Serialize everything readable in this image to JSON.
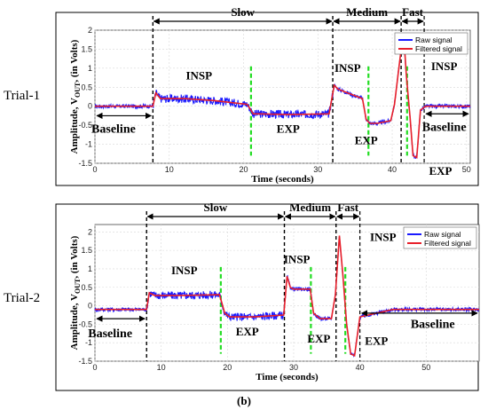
{
  "figure_label": "(b)",
  "chart_data": [
    {
      "type": "line",
      "trial_label": "Trial-1",
      "xlabel": "Time (seconds)",
      "ylabel": "Amplitude, V_OUT, (in Volts)",
      "xlim": [
        0,
        50.5
      ],
      "ylim": [
        -1.5,
        2
      ],
      "xticks": [
        0,
        10,
        20,
        30,
        40,
        50
      ],
      "yticks": [
        -1.5,
        -1,
        -0.5,
        0,
        0.5,
        1,
        1.5,
        2
      ],
      "legend": {
        "position": "top-right",
        "entries": [
          "Raw signal",
          "Filtered signal"
        ]
      },
      "series": [
        {
          "name": "Raw signal",
          "color": "#1a1aff"
        },
        {
          "name": "Filtered signal",
          "color": "#e8202a"
        }
      ],
      "x": [
        0,
        7.8,
        8.2,
        8.8,
        12,
        16,
        20.5,
        21.3,
        22,
        26,
        31.5,
        32.2,
        32.7,
        34,
        36,
        36.5,
        37,
        38,
        39.8,
        40.3,
        41.2,
        41.6,
        41.9,
        42.4,
        42.8,
        43.3,
        43.8,
        44.5,
        47,
        50.5
      ],
      "y": [
        0,
        0,
        0.35,
        0.2,
        0.2,
        0.15,
        0.05,
        -0.2,
        -0.2,
        -0.22,
        -0.2,
        0.55,
        0.45,
        0.35,
        0.2,
        -0.35,
        -0.45,
        -0.45,
        -0.38,
        0.05,
        1.5,
        1.7,
        0.8,
        -0.3,
        -1.3,
        -1.35,
        -0.1,
        0,
        0,
        0
      ],
      "phases": [
        {
          "label": "Slow",
          "x0": 7.8,
          "x1": 32
        },
        {
          "label": "Medium",
          "x0": 32,
          "x1": 41.2
        },
        {
          "label": "Fast",
          "x0": 41.2,
          "x1": 44.3
        }
      ],
      "phase_dividers": [
        7.8,
        32,
        41.2
      ],
      "transition_markers": [
        21,
        36.8,
        42
      ],
      "fast_divider": 44.3,
      "annotations": [
        {
          "text": "INSP",
          "x": 14,
          "y": 0.7
        },
        {
          "text": "EXP",
          "x": 26,
          "y": -0.7
        },
        {
          "text": "INSP",
          "x": 34,
          "y": 0.9
        },
        {
          "text": "EXP",
          "x": 36.5,
          "y": -1.0
        },
        {
          "text": "INSP",
          "x": 47,
          "y": 0.95
        },
        {
          "text": "EXP",
          "x": 46.5,
          "y": -1.8
        },
        {
          "text": "Baseline",
          "x": 2.5,
          "y": -0.7
        },
        {
          "text": "Baseline",
          "x": 47,
          "y": -0.65
        }
      ],
      "baseline_arrows": [
        {
          "x0": 0,
          "x1": 7.8,
          "y": -0.25
        },
        {
          "x0": 44.3,
          "x1": 50.5,
          "y": -0.2
        }
      ]
    },
    {
      "type": "line",
      "trial_label": "Trial-2",
      "xlabel": "Time (seconds)",
      "ylabel": "Amplitude, V_OUT, (in Volts)",
      "xlim": [
        0,
        58
      ],
      "ylim": [
        -1.5,
        2.2
      ],
      "xticks": [
        0,
        10,
        20,
        30,
        40,
        50
      ],
      "yticks": [
        -1.5,
        -1,
        -0.5,
        0,
        0.5,
        1,
        1.5,
        2
      ],
      "legend": {
        "position": "top-right",
        "entries": [
          "Raw signal",
          "Filtered signal"
        ]
      },
      "series": [
        {
          "name": "Raw signal",
          "color": "#1a1aff"
        },
        {
          "name": "Filtered signal",
          "color": "#e8202a"
        }
      ],
      "x": [
        0,
        7.8,
        8.2,
        9,
        13,
        18.8,
        19.6,
        20.3,
        24,
        28.5,
        29,
        29.5,
        30,
        32.5,
        33,
        34,
        35.7,
        36.3,
        36.9,
        37.4,
        38,
        38.6,
        39.2,
        40,
        45,
        58
      ],
      "y": [
        -0.1,
        -0.1,
        0.35,
        0.28,
        0.28,
        0.3,
        -0.2,
        -0.3,
        -0.3,
        -0.25,
        0.8,
        0.5,
        0.45,
        0.45,
        -0.2,
        -0.35,
        -0.35,
        0.3,
        1.9,
        0.9,
        -0.5,
        -1.3,
        -1.35,
        -0.3,
        -0.1,
        -0.1
      ],
      "phases": [
        {
          "label": "Slow",
          "x0": 7.8,
          "x1": 28.6
        },
        {
          "label": "Medium",
          "x0": 28.6,
          "x1": 36.4
        },
        {
          "label": "Fast",
          "x0": 36.4,
          "x1": 40
        }
      ],
      "phase_dividers": [
        7.8,
        28.6,
        36.4
      ],
      "transition_markers": [
        19,
        32.6,
        37.8
      ],
      "fast_divider": 40,
      "annotations": [
        {
          "text": "INSP",
          "x": 13.5,
          "y": 0.85
        },
        {
          "text": "EXP",
          "x": 23,
          "y": -0.8
        },
        {
          "text": "INSP",
          "x": 30.5,
          "y": 1.15
        },
        {
          "text": "EXP",
          "x": 33.8,
          "y": -1.0
        },
        {
          "text": "INSP",
          "x": 43.5,
          "y": 1.75
        },
        {
          "text": "EXP",
          "x": 42.5,
          "y": -1.05
        },
        {
          "text": "Baseline",
          "x": 2.3,
          "y": -0.85
        },
        {
          "text": "Baseline",
          "x": 51,
          "y": -0.6
        }
      ],
      "baseline_arrows": [
        {
          "x0": 0,
          "x1": 7.8,
          "y": -0.35
        },
        {
          "x0": 40,
          "x1": 58,
          "y": -0.2
        }
      ]
    }
  ]
}
